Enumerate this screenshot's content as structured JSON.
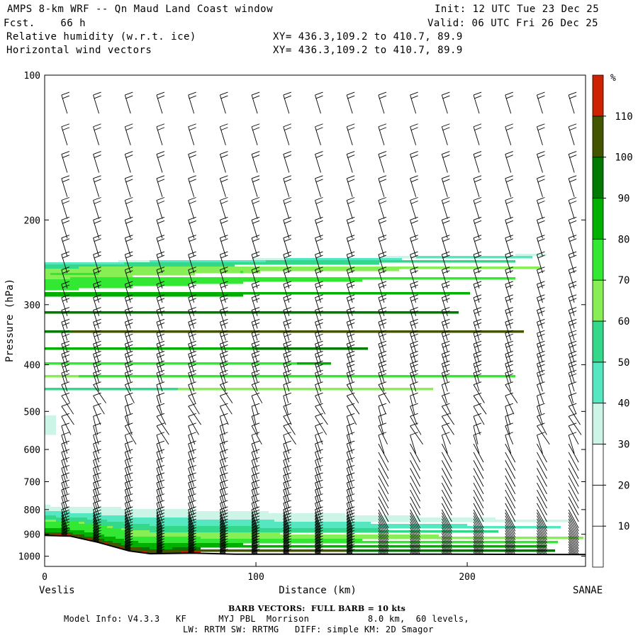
{
  "header": {
    "title": "AMPS 8-km WRF -- Qn Maud Land Coast window",
    "forecast": "Fcst.    66 h",
    "var1": "Relative humidity (w.r.t. ice)",
    "var2": "Horizontal wind vectors",
    "xy1": "XY= 436.3,109.2 to 410.7, 89.9",
    "xy2": "XY= 436.3,109.2 to 410.7, 89.9",
    "init": "Init: 12 UTC Tue 23 Dec 25",
    "valid": "Valid: 06 UTC Fri 26 Dec 25"
  },
  "chart_data": {
    "type": "heatmap",
    "xlabel": "Distance (km)",
    "ylabel": "Pressure (hPa)",
    "x_ticks": [
      0,
      100,
      200
    ],
    "y_ticks": [
      100,
      200,
      300,
      400,
      500,
      600,
      700,
      800,
      900,
      1000
    ],
    "xlim": [
      0,
      256
    ],
    "ylim": [
      1050,
      100
    ],
    "y_scale": "log",
    "left_end_label": "Veslis",
    "right_end_label": "SANAE",
    "colorbar": {
      "unit": "%",
      "levels": [
        10,
        20,
        30,
        40,
        50,
        60,
        70,
        80,
        90,
        100,
        110
      ],
      "colors": [
        "#ffffff",
        "#ffffff",
        "#ffffff",
        "#ccf5e8",
        "#55e8c0",
        "#33d88a",
        "#88ee55",
        "#33e833",
        "#00b000",
        "#007a00",
        "#445500",
        "#cc2200"
      ]
    },
    "rh_layers": [
      {
        "band": "upper",
        "top_hPa": 245,
        "bottom_hPa": 515,
        "max_percent": 105
      },
      {
        "band": "lower",
        "top_hPa": 785,
        "bottom_hPa": 990,
        "max_percent": 110
      }
    ],
    "terrain_surface_hPa": {
      "x": [
        0,
        12,
        25,
        40,
        50,
        70,
        90,
        120,
        180,
        256
      ],
      "p": [
        905,
        908,
        935,
        975,
        988,
        985,
        990,
        990,
        990,
        992
      ]
    },
    "wind_barbs": {
      "spacing_km": 15,
      "direction_upper": "northwesterly",
      "full_barb_kts": 10
    }
  },
  "footer": {
    "barb": "BARB VECTORS:  FULL BARB = 10 kts",
    "model1": "Model Info: V4.3.3   KF      MYJ PBL  Morrison           8.0 km,  60 levels,",
    "model2": "LW: RRTM SW: RRTMG   DIFF: simple KM: 2D Smagor"
  }
}
